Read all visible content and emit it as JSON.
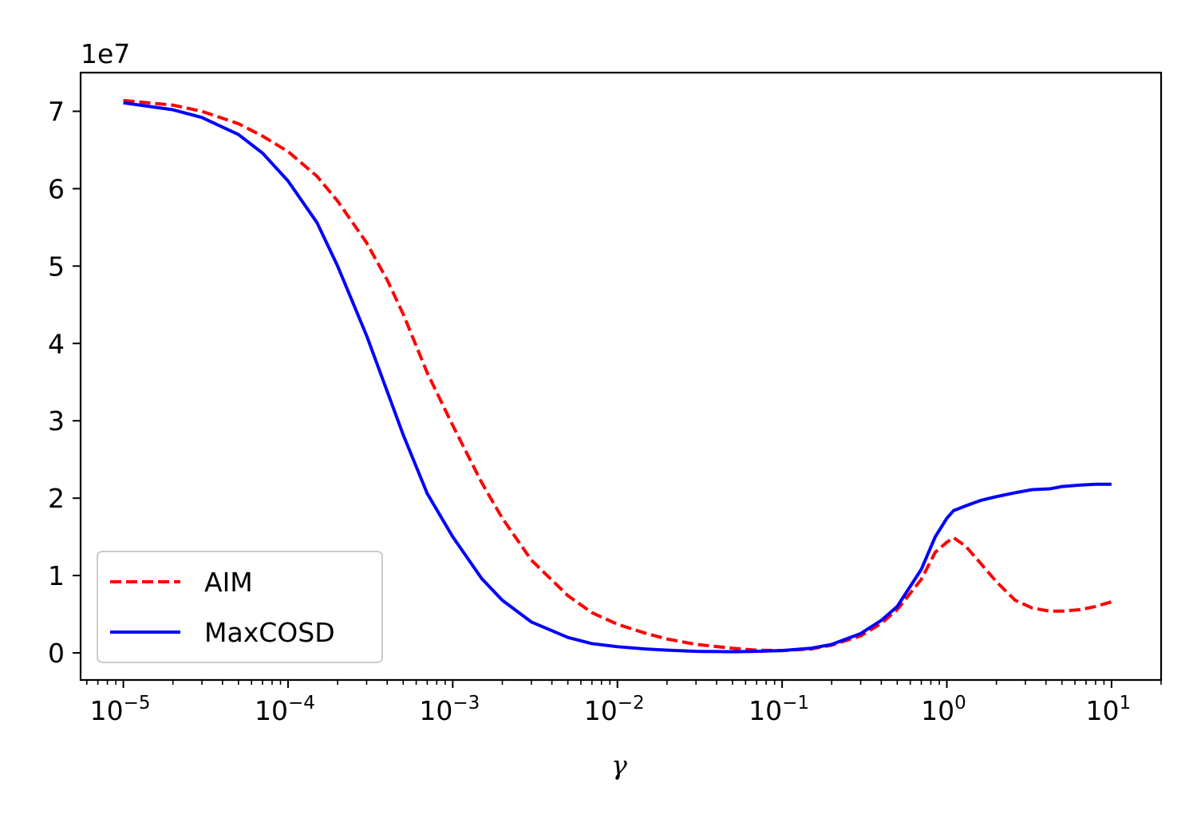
{
  "chart_data": {
    "type": "line",
    "xlabel": "γ",
    "ylabel": "",
    "xscale": "log",
    "xlim": [
      5.5e-06,
      20
    ],
    "ylim": [
      -0.35,
      7.5
    ],
    "y_offset_label": "1e7",
    "y_ticks": [
      0,
      1,
      2,
      3,
      4,
      5,
      6,
      7
    ],
    "x_ticks": [
      {
        "value": 1e-05,
        "base": "10",
        "exp": "−5"
      },
      {
        "value": 0.0001,
        "base": "10",
        "exp": "−4"
      },
      {
        "value": 0.001,
        "base": "10",
        "exp": "−3"
      },
      {
        "value": 0.01,
        "base": "10",
        "exp": "−2"
      },
      {
        "value": 0.1,
        "base": "10",
        "exp": "−1"
      },
      {
        "value": 1,
        "base": "10",
        "exp": "0"
      },
      {
        "value": 10,
        "base": "10",
        "exp": "1"
      }
    ],
    "legend_position": "lower-left",
    "series": [
      {
        "name": "AIM",
        "color": "#ff0000",
        "style": "dashed",
        "x": [
          1e-05,
          2e-05,
          3e-05,
          5e-05,
          7e-05,
          0.0001,
          0.00015,
          0.0002,
          0.0003,
          0.0004,
          0.0005,
          0.0007,
          0.001,
          0.0015,
          0.002,
          0.003,
          0.005,
          0.007,
          0.01,
          0.015,
          0.02,
          0.03,
          0.05,
          0.07,
          0.1,
          0.15,
          0.2,
          0.3,
          0.4,
          0.5,
          0.7,
          0.85,
          1.0,
          1.1,
          1.3,
          1.6,
          2.0,
          2.6,
          3.3,
          4.2,
          5.0,
          6.5,
          8.0,
          10.0
        ],
        "y": [
          7.14,
          7.08,
          7.0,
          6.84,
          6.68,
          6.48,
          6.16,
          5.84,
          5.3,
          4.82,
          4.38,
          3.62,
          2.94,
          2.2,
          1.74,
          1.2,
          0.74,
          0.52,
          0.37,
          0.25,
          0.18,
          0.11,
          0.06,
          0.035,
          0.03,
          0.05,
          0.1,
          0.22,
          0.38,
          0.56,
          0.95,
          1.3,
          1.43,
          1.49,
          1.38,
          1.16,
          0.92,
          0.68,
          0.58,
          0.54,
          0.54,
          0.56,
          0.6,
          0.66
        ]
      },
      {
        "name": "MaxCOSD",
        "color": "#0000ff",
        "style": "solid",
        "x": [
          1e-05,
          2e-05,
          3e-05,
          5e-05,
          7e-05,
          0.0001,
          0.00015,
          0.0002,
          0.0003,
          0.0004,
          0.0005,
          0.0007,
          0.001,
          0.0015,
          0.002,
          0.003,
          0.005,
          0.007,
          0.01,
          0.015,
          0.02,
          0.03,
          0.05,
          0.07,
          0.1,
          0.15,
          0.2,
          0.3,
          0.4,
          0.5,
          0.7,
          0.85,
          1.0,
          1.1,
          1.3,
          1.6,
          2.0,
          2.6,
          3.3,
          4.2,
          5.0,
          6.5,
          8.0,
          10.0
        ],
        "y": [
          7.11,
          7.02,
          6.92,
          6.7,
          6.46,
          6.1,
          5.56,
          5.0,
          4.1,
          3.38,
          2.82,
          2.06,
          1.5,
          0.96,
          0.68,
          0.4,
          0.2,
          0.12,
          0.08,
          0.05,
          0.035,
          0.02,
          0.015,
          0.02,
          0.03,
          0.06,
          0.11,
          0.25,
          0.42,
          0.6,
          1.08,
          1.5,
          1.74,
          1.84,
          1.9,
          1.97,
          2.02,
          2.07,
          2.11,
          2.12,
          2.15,
          2.17,
          2.18,
          2.18
        ]
      }
    ]
  }
}
